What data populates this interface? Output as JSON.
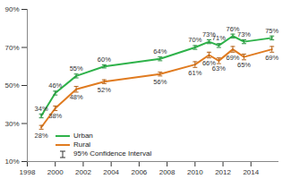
{
  "chart_data": {
    "type": "line",
    "x": [
      1999,
      2000,
      2001.5,
      2003.5,
      2007.5,
      2010,
      2011,
      2011.7,
      2012.7,
      2013.5,
      2015.5
    ],
    "series": [
      {
        "name": "Urban",
        "color": "#2eb24a",
        "values": [
          34,
          46,
          55,
          60,
          64,
          70,
          73,
          71,
          76,
          73,
          75
        ],
        "value_labels": [
          "34%",
          "46%",
          "55%",
          "60%",
          "64%",
          "70%",
          "73%",
          "71%",
          "76%",
          "73%",
          "75%"
        ],
        "errors": [
          1,
          1,
          1,
          0.8,
          1,
          1,
          1,
          1,
          1,
          1,
          1
        ]
      },
      {
        "name": "Rural",
        "color": "#e07b20",
        "values": [
          28,
          38,
          48,
          52,
          56,
          61,
          66,
          63,
          69,
          65,
          69
        ],
        "value_labels": [
          "28%",
          "38%",
          "48%",
          "52%",
          "56%",
          "61%",
          "66%",
          "63%",
          "69%",
          "65%",
          "69%"
        ],
        "errors": [
          1,
          1.2,
          1.5,
          1,
          1,
          1.5,
          1.5,
          1.5,
          1.5,
          1.5,
          1.5
        ]
      }
    ],
    "error_label": "95% Confidence Interval",
    "xlim": [
      1998,
      2016
    ],
    "xticks": [
      1998,
      2000,
      2002,
      2004,
      2006,
      2008,
      2010,
      2012,
      2014
    ],
    "ylim": [
      10,
      90
    ],
    "yticks": [
      {
        "value": 10,
        "label": "10%"
      },
      {
        "value": 30,
        "label": "30%"
      },
      {
        "value": 50,
        "label": "50%"
      },
      {
        "value": 70,
        "label": "70%"
      },
      {
        "value": 90,
        "label": "90%"
      }
    ],
    "data_labels": true,
    "legend": "lower left",
    "grid": false
  }
}
